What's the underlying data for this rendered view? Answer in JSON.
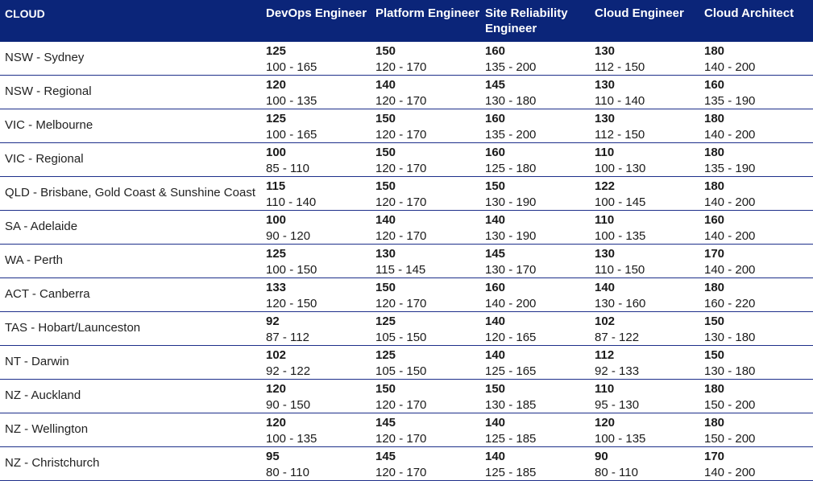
{
  "headers": [
    "CLOUD",
    "DevOps Engineer",
    "Platform Engineer",
    "Site Reliability Engineer",
    "Cloud Engineer",
    "Cloud Architect"
  ],
  "rows": [
    {
      "location": "NSW - Sydney",
      "cells": [
        {
          "median": "125",
          "range": "100 - 165"
        },
        {
          "median": "150",
          "range": "120 - 170"
        },
        {
          "median": "160",
          "range": "135 - 200"
        },
        {
          "median": "130",
          "range": "112 - 150"
        },
        {
          "median": "180",
          "range": "140 - 200"
        }
      ]
    },
    {
      "location": "NSW - Regional",
      "cells": [
        {
          "median": "120",
          "range": "100 - 135"
        },
        {
          "median": "140",
          "range": "120 - 170"
        },
        {
          "median": "145",
          "range": "130 - 180"
        },
        {
          "median": "130",
          "range": "110 - 140"
        },
        {
          "median": "160",
          "range": "135 - 190"
        }
      ]
    },
    {
      "location": "VIC - Melbourne",
      "cells": [
        {
          "median": "125",
          "range": "100 - 165"
        },
        {
          "median": "150",
          "range": "120 - 170"
        },
        {
          "median": "160",
          "range": "135 - 200"
        },
        {
          "median": "130",
          "range": "112 - 150"
        },
        {
          "median": "180",
          "range": "140 - 200"
        }
      ]
    },
    {
      "location": "VIC - Regional",
      "cells": [
        {
          "median": "100",
          "range": "85 - 110"
        },
        {
          "median": "150",
          "range": "120 - 170"
        },
        {
          "median": "160",
          "range": "125 - 180"
        },
        {
          "median": "110",
          "range": "100 - 130"
        },
        {
          "median": "180",
          "range": "135 - 190"
        }
      ]
    },
    {
      "location": "QLD - Brisbane, Gold Coast & Sunshine Coast",
      "cells": [
        {
          "median": "115",
          "range": "110 - 140"
        },
        {
          "median": "150",
          "range": "120 - 170"
        },
        {
          "median": "150",
          "range": "130 - 190"
        },
        {
          "median": "122",
          "range": "100 - 145"
        },
        {
          "median": "180",
          "range": "140 - 200"
        }
      ]
    },
    {
      "location": "SA - Adelaide",
      "cells": [
        {
          "median": "100",
          "range": "90 - 120"
        },
        {
          "median": "140",
          "range": "120 - 170"
        },
        {
          "median": "140",
          "range": "130 - 190"
        },
        {
          "median": "110",
          "range": "100 - 135"
        },
        {
          "median": "160",
          "range": "140 - 200"
        }
      ]
    },
    {
      "location": "WA - Perth",
      "cells": [
        {
          "median": "125",
          "range": "100 - 150"
        },
        {
          "median": "130",
          "range": "115 - 145"
        },
        {
          "median": "145",
          "range": "130 - 170"
        },
        {
          "median": "130",
          "range": "110 - 150"
        },
        {
          "median": "170",
          "range": "140 - 200"
        }
      ]
    },
    {
      "location": "ACT - Canberra",
      "cells": [
        {
          "median": "133",
          "range": "120 - 150"
        },
        {
          "median": "150",
          "range": "120 - 170"
        },
        {
          "median": "160",
          "range": "140 - 200"
        },
        {
          "median": "140",
          "range": "130 - 160"
        },
        {
          "median": "180",
          "range": "160 - 220"
        }
      ]
    },
    {
      "location": "TAS - Hobart/Launceston",
      "cells": [
        {
          "median": "92",
          "range": "87 - 112"
        },
        {
          "median": "125",
          "range": "105 - 150"
        },
        {
          "median": "140",
          "range": "120 - 165"
        },
        {
          "median": "102",
          "range": "87 - 122"
        },
        {
          "median": "150",
          "range": "130 - 180"
        }
      ]
    },
    {
      "location": "NT - Darwin",
      "cells": [
        {
          "median": "102",
          "range": "92 - 122"
        },
        {
          "median": "125",
          "range": "105 - 150"
        },
        {
          "median": "140",
          "range": "125 - 165"
        },
        {
          "median": "112",
          "range": "92 - 133"
        },
        {
          "median": "150",
          "range": "130 - 180"
        }
      ]
    },
    {
      "location": "NZ - Auckland",
      "cells": [
        {
          "median": "120",
          "range": "90 - 150"
        },
        {
          "median": "150",
          "range": "120 - 170"
        },
        {
          "median": "150",
          "range": "130 - 185"
        },
        {
          "median": "110",
          "range": "95 - 130"
        },
        {
          "median": "180",
          "range": "150 - 200"
        }
      ]
    },
    {
      "location": "NZ - Wellington",
      "cells": [
        {
          "median": "120",
          "range": "100 - 135"
        },
        {
          "median": "145",
          "range": "120 - 170"
        },
        {
          "median": "140",
          "range": "125 - 185"
        },
        {
          "median": "120",
          "range": "100 - 135"
        },
        {
          "median": "180",
          "range": "150 - 200"
        }
      ]
    },
    {
      "location": "NZ - Christchurch",
      "cells": [
        {
          "median": "95",
          "range": "80 - 110"
        },
        {
          "median": "145",
          "range": "120 - 170"
        },
        {
          "median": "140",
          "range": "125 - 185"
        },
        {
          "median": "90",
          "range": "80 - 110"
        },
        {
          "median": "170",
          "range": "140 - 200"
        }
      ]
    }
  ],
  "colors": {
    "header_bg": "#0b2579",
    "header_text": "#ffffff",
    "row_border": "#1d2f8a"
  }
}
